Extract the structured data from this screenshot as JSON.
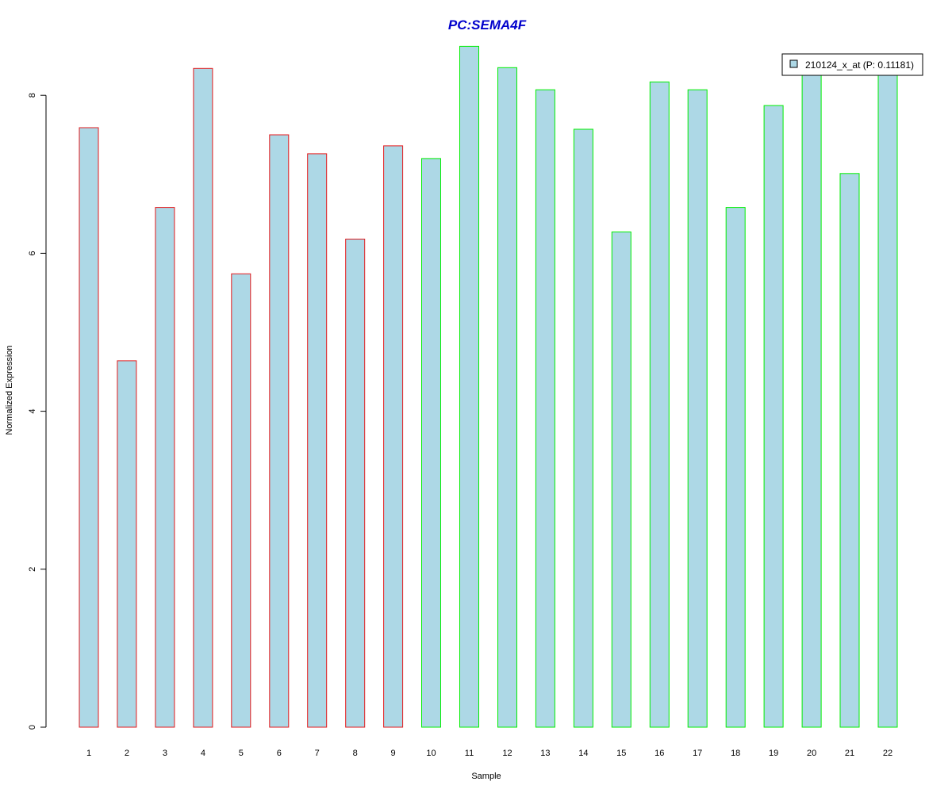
{
  "chart_data": {
    "type": "bar",
    "title": "PC:SEMA4F",
    "xlabel": "Sample",
    "ylabel": "Normalized Expression",
    "categories": [
      "1",
      "2",
      "3",
      "4",
      "5",
      "6",
      "7",
      "8",
      "9",
      "10",
      "11",
      "12",
      "13",
      "14",
      "15",
      "16",
      "17",
      "18",
      "19",
      "20",
      "21",
      "22"
    ],
    "series": [
      {
        "name": "210124_x_at (P: 0.11181)",
        "values": [
          7.59,
          4.64,
          6.58,
          8.34,
          5.74,
          7.5,
          7.26,
          6.18,
          7.36,
          7.2,
          8.62,
          8.35,
          8.07,
          7.57,
          6.27,
          8.17,
          8.07,
          6.58,
          7.87,
          8.3,
          7.01,
          8.31
        ]
      }
    ],
    "group_border_colors": [
      "#e31a1c",
      "#e31a1c",
      "#e31a1c",
      "#e31a1c",
      "#e31a1c",
      "#e31a1c",
      "#e31a1c",
      "#e31a1c",
      "#e31a1c",
      "#00ee00",
      "#00ee00",
      "#00ee00",
      "#00ee00",
      "#00ee00",
      "#00ee00",
      "#00ee00",
      "#00ee00",
      "#00ee00",
      "#00ee00",
      "#00ee00",
      "#00ee00",
      "#00ee00"
    ],
    "yticks": [
      0,
      2,
      4,
      6,
      8
    ],
    "ylim": [
      0,
      8.62
    ],
    "legend_position": "top-right",
    "grid": false,
    "colors": {
      "bar_fill": "#add8e6",
      "title": "#0000cc"
    }
  }
}
